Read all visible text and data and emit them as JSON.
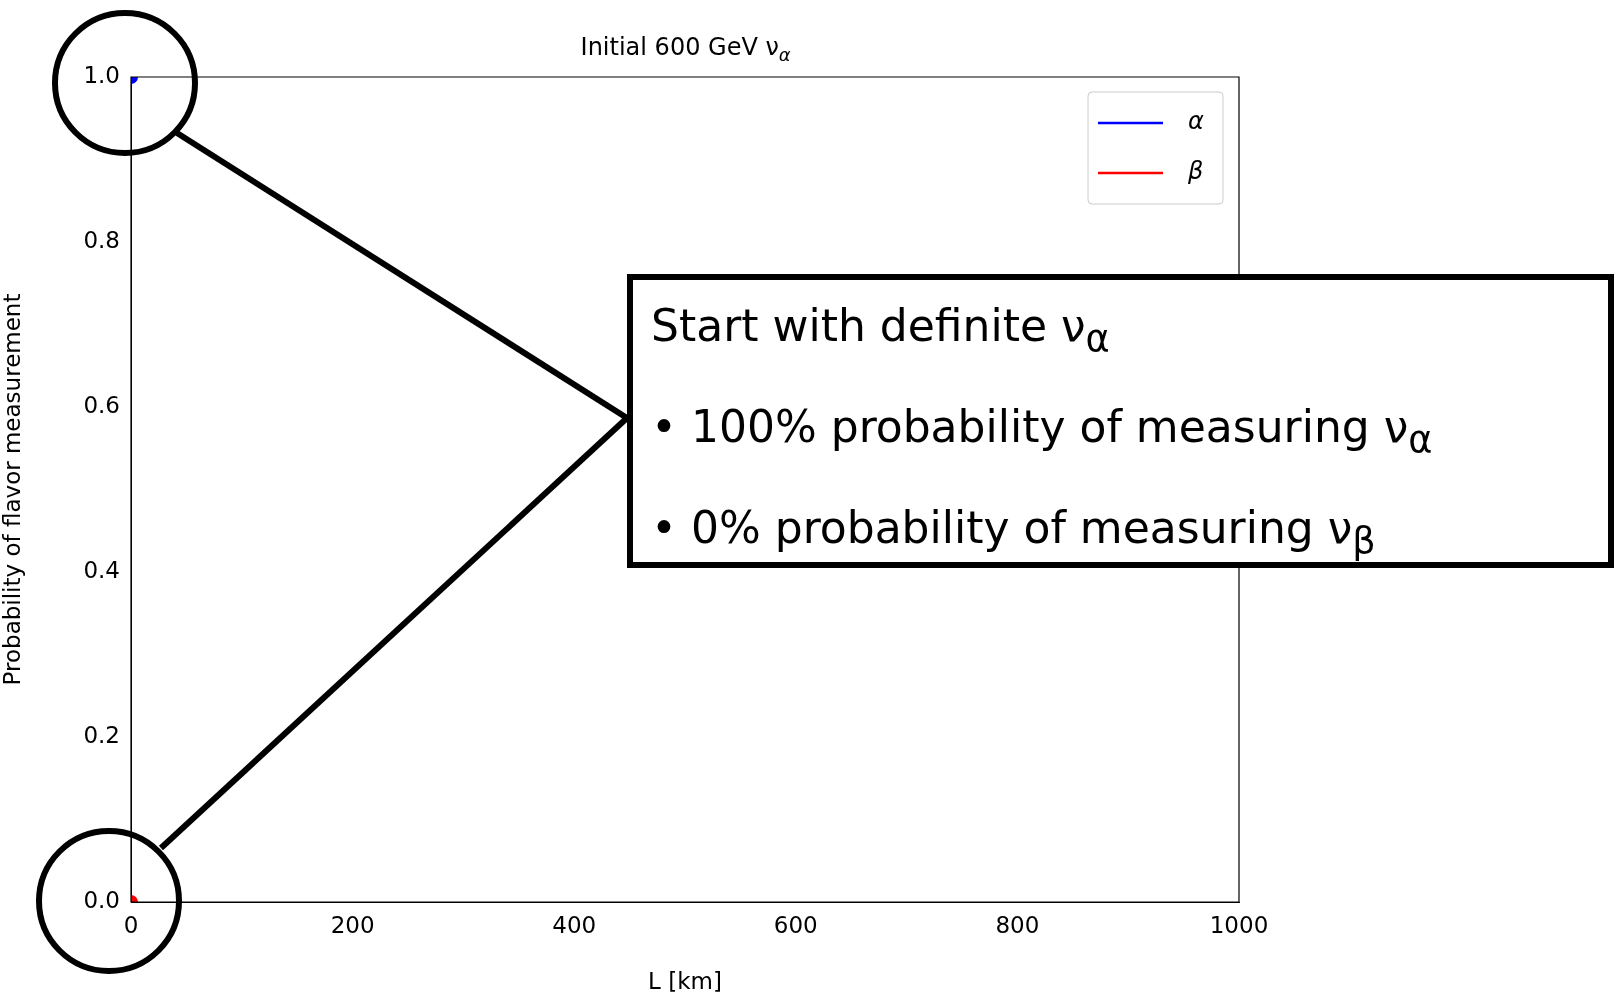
{
  "chart_data": {
    "type": "line",
    "title": "Initial 600 GeV ν$_{α}$",
    "xlabel": "L [km]",
    "ylabel": "Probability of flavor measurement",
    "x": [
      0
    ],
    "series": [
      {
        "name": "α",
        "color": "#0000ff",
        "values": [
          1
        ]
      },
      {
        "name": "β",
        "color": "#ff0000",
        "values": [
          0
        ]
      }
    ],
    "xlim": [
      0,
      1000
    ],
    "xticks": [
      0,
      200,
      400,
      600,
      800,
      1000
    ],
    "ylim": [
      0,
      1
    ],
    "yticks": [
      {
        "value": 0,
        "label": "0.0"
      },
      0.2,
      0.4,
      0.6,
      0.8,
      {
        "value": 1,
        "label": "1.0"
      }
    ],
    "legend": "top right",
    "marker": "circle",
    "grid": false,
    "annotations": [
      "Start with definite ν$_{α}$",
      "• 100% probability of measuring ν$_{α}$",
      "• 0% probability of measuring ν$_{β}$"
    ]
  }
}
